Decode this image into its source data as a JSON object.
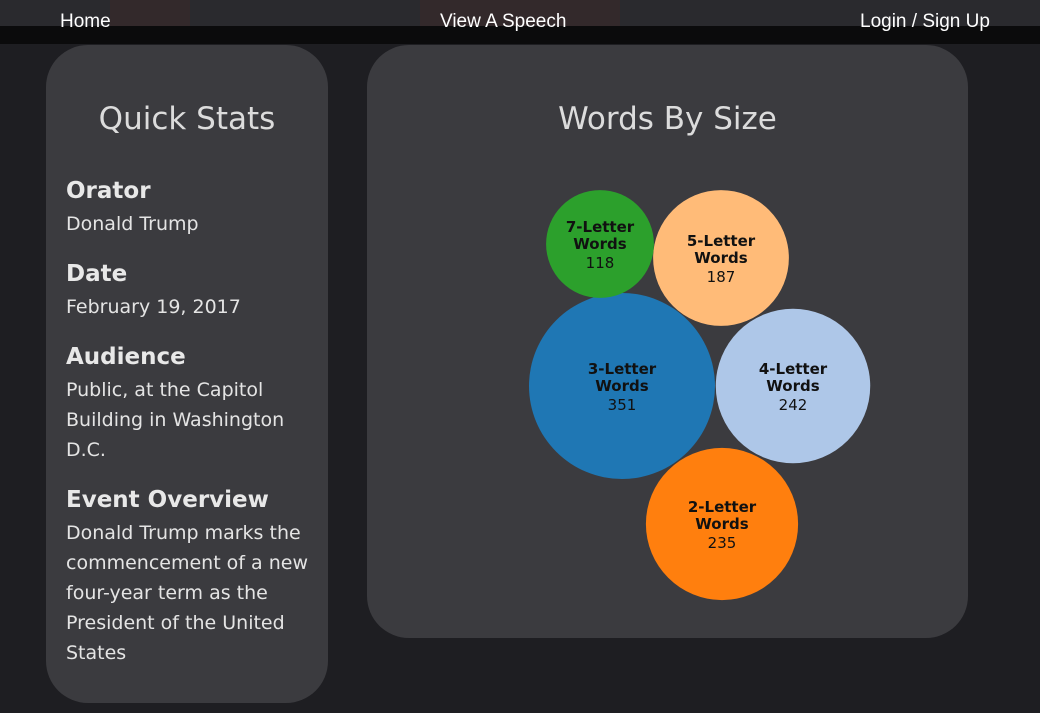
{
  "nav": {
    "home": "Home",
    "view_speech": "View A Speech",
    "login": "Login / Sign Up"
  },
  "quick_stats": {
    "title": "Quick Stats",
    "orator_label": "Orator",
    "orator": "Donald Trump",
    "date_label": "Date",
    "date": "February 19, 2017",
    "audience_label": "Audience",
    "audience": "Public, at the Capitol Building in Washington D.C.",
    "overview_label": "Event Overview",
    "overview": "Donald Trump marks the commencement of a new four-year term as the President of the United States"
  },
  "chart_data": {
    "type": "bubble",
    "title": "Words By Size",
    "bubbles": [
      {
        "label_line1": "3-Letter",
        "label_line2": "Words",
        "value": 351,
        "color": "#1f77b4"
      },
      {
        "label_line1": "4-Letter",
        "label_line2": "Words",
        "value": 242,
        "color": "#aec7e8"
      },
      {
        "label_line1": "2-Letter",
        "label_line2": "Words",
        "value": 235,
        "color": "#ff7f0e"
      },
      {
        "label_line1": "5-Letter",
        "label_line2": "Words",
        "value": 187,
        "color": "#ffbb78"
      },
      {
        "label_line1": "7-Letter",
        "label_line2": "Words",
        "value": 118,
        "color": "#2ca02c"
      }
    ]
  }
}
